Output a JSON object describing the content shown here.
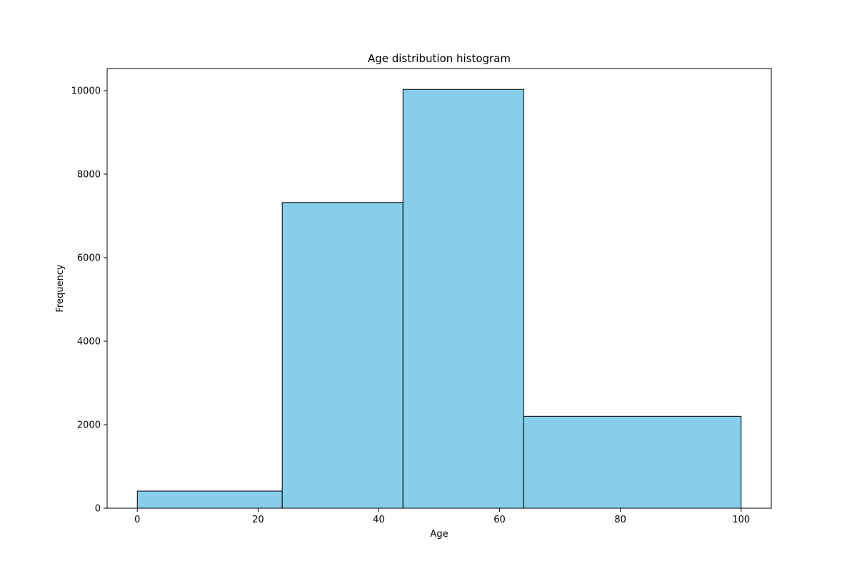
{
  "chart_data": {
    "type": "bar",
    "title": "Age distribution histogram",
    "xlabel": "Age",
    "ylabel": "Frequency",
    "bins": [
      {
        "start": 0,
        "end": 24,
        "value": 410
      },
      {
        "start": 24,
        "end": 44,
        "value": 7320
      },
      {
        "start": 44,
        "end": 64,
        "value": 10030
      },
      {
        "start": 64,
        "end": 100,
        "value": 2200
      }
    ],
    "xlim": [
      -5,
      105
    ],
    "ylim": [
      0,
      10530
    ],
    "xticks": [
      0,
      20,
      40,
      60,
      80,
      100
    ],
    "yticks": [
      0,
      2000,
      4000,
      6000,
      8000,
      10000
    ],
    "bar_color": "#87CEEB",
    "edge_color": "#000000",
    "grid": false,
    "legend": "none"
  }
}
